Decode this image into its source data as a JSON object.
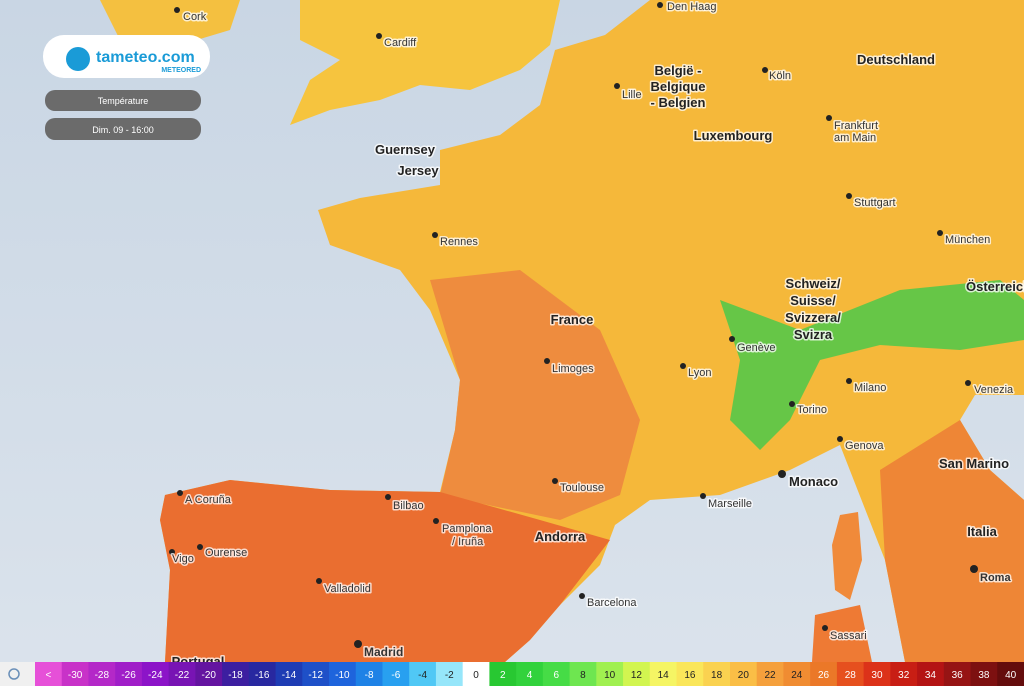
{
  "logo": {
    "name": "tameteo.com",
    "tagline": "METEORED"
  },
  "controls": {
    "layer": "Température",
    "time": "Dim. 09 - 16:00"
  },
  "cities": [
    "Cork",
    "Cardiff",
    "Den Haag",
    "Köln",
    "Lille",
    [
      "Frankfurt",
      "am Main"
    ],
    "Stuttgart",
    "München",
    "Rennes",
    "Limoges",
    "Lyon",
    "Genève",
    "Milano",
    "Venezia",
    "Torino",
    "Genova",
    "Toulouse",
    "Marseille",
    "A Coruña",
    "Bilbao",
    [
      "Pamplona",
      "/ Iruña"
    ],
    "Ourense",
    "Vigo",
    "Valladolid",
    "Barcelona",
    "Sassari",
    "Roma",
    "Madrid"
  ],
  "regions": [
    [
      "België -",
      "Belgique",
      "- Belgien"
    ],
    [
      "Deutschland"
    ],
    [
      "Luxembourg"
    ],
    [
      "Guernsey"
    ],
    [
      "Jersey"
    ],
    [
      "France"
    ],
    [
      "Schweiz/",
      "Suisse/",
      "Svizzera/",
      "Svizra"
    ],
    [
      "Österreich"
    ],
    [
      "Andorra"
    ],
    [
      "Monaco"
    ],
    [
      "San Marino"
    ],
    [
      "Italia"
    ],
    [
      "Portugal"
    ]
  ],
  "legend": {
    "items": [
      {
        "label": "<",
        "color": "#e650d8"
      },
      {
        "label": -30,
        "color": "#c832c8"
      },
      {
        "label": -28,
        "color": "#b428c8"
      },
      {
        "label": -26,
        "color": "#a01ec8"
      },
      {
        "label": -24,
        "color": "#8c14c8"
      },
      {
        "label": -22,
        "color": "#7814b4"
      },
      {
        "label": -20,
        "color": "#6414a0"
      },
      {
        "label": -18,
        "color": "#3c1ea0"
      },
      {
        "label": -16,
        "color": "#2828a0"
      },
      {
        "label": -14,
        "color": "#1e3cb4"
      },
      {
        "label": -12,
        "color": "#1e50c8"
      },
      {
        "label": -10,
        "color": "#1e64dc"
      },
      {
        "label": -8,
        "color": "#1e82e6"
      },
      {
        "label": -6,
        "color": "#28a0f0"
      },
      {
        "label": -4,
        "color": "#50c8f5"
      },
      {
        "label": -2,
        "color": "#96e6fa"
      },
      {
        "label": 0,
        "color": "#ffffff"
      },
      {
        "label": 2,
        "color": "#28c832"
      },
      {
        "label": 4,
        "color": "#32d23c"
      },
      {
        "label": 6,
        "color": "#46dc46"
      },
      {
        "label": 8,
        "color": "#6ee650"
      },
      {
        "label": 10,
        "color": "#a0f050"
      },
      {
        "label": 12,
        "color": "#d2f550"
      },
      {
        "label": 14,
        "color": "#f5f564"
      },
      {
        "label": 16,
        "color": "#fae65a"
      },
      {
        "label": 18,
        "color": "#fad250"
      },
      {
        "label": 20,
        "color": "#fabe46"
      },
      {
        "label": 22,
        "color": "#f5a03c"
      },
      {
        "label": 24,
        "color": "#f08c32"
      },
      {
        "label": 26,
        "color": "#eb7828"
      },
      {
        "label": 28,
        "color": "#e6501e"
      },
      {
        "label": 30,
        "color": "#dc3219"
      },
      {
        "label": 32,
        "color": "#c81e14"
      },
      {
        "label": 34,
        "color": "#b41414"
      },
      {
        "label": 36,
        "color": "#961414"
      },
      {
        "label": 38,
        "color": "#7d1010"
      },
      {
        "label": 40,
        "color": "#640c0c"
      }
    ]
  }
}
